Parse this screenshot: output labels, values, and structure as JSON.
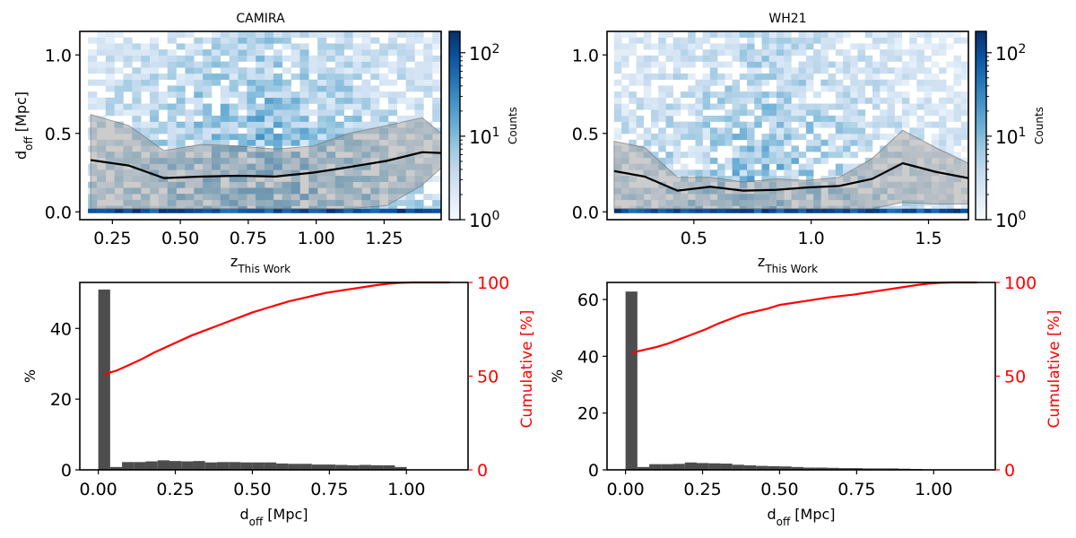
{
  "colors": {
    "axis": "#000000",
    "bar": "#4d4d4d",
    "cumulative": "#ff0000",
    "band": "#999999",
    "median": "#000000",
    "heat_low": "#f7fbff",
    "heat_high": "#08306b"
  },
  "colorbar": {
    "label": "Counts",
    "ticks": [
      {
        "base": "10",
        "exp": "0",
        "value": 1
      },
      {
        "base": "10",
        "exp": "1",
        "value": 10
      },
      {
        "base": "10",
        "exp": "2",
        "value": 100
      }
    ],
    "scale": "log",
    "range": [
      1,
      180
    ]
  },
  "chart_data": [
    {
      "type": "heatmap",
      "title": "CAMIRA",
      "xlabel": {
        "main": "z",
        "sub": "This Work"
      },
      "ylabel": {
        "main": "d",
        "sub": "off",
        "rest": " [Mpc]"
      },
      "xlim": [
        0.13,
        1.46
      ],
      "ylim": [
        -0.05,
        1.15
      ],
      "xticks": [
        "0.25",
        "0.50",
        "0.75",
        "1.00",
        "1.25"
      ],
      "xtick_values": [
        0.25,
        0.5,
        0.75,
        1.0,
        1.25
      ],
      "yticks": [
        "0.0",
        "0.5",
        "1.0"
      ],
      "ytick_values": [
        0.0,
        0.5,
        1.0
      ],
      "median_line": {
        "x": [
          0.17,
          0.31,
          0.44,
          0.58,
          0.71,
          0.85,
          0.99,
          1.12,
          1.26,
          1.39,
          1.46
        ],
        "y": [
          0.33,
          0.295,
          0.215,
          0.225,
          0.23,
          0.225,
          0.25,
          0.285,
          0.325,
          0.38,
          0.375
        ]
      },
      "band": {
        "x": [
          0.17,
          0.31,
          0.44,
          0.58,
          0.71,
          0.85,
          0.99,
          1.12,
          1.26,
          1.39,
          1.46
        ],
        "upper": [
          0.62,
          0.55,
          0.39,
          0.43,
          0.42,
          0.4,
          0.42,
          0.5,
          0.55,
          0.6,
          0.5
        ],
        "lower": [
          0.02,
          0.02,
          0.02,
          0.02,
          0.02,
          0.02,
          0.02,
          0.02,
          0.04,
          0.17,
          0.28
        ]
      },
      "heatmap_grid": {
        "nx": 40,
        "ny": 30,
        "seed": 7,
        "peak_bin_counts": 180
      },
      "colorbar_range": [
        1,
        180
      ]
    },
    {
      "type": "heatmap",
      "title": "WH21",
      "xlabel": {
        "main": "z",
        "sub": "This Work"
      },
      "ylabel": {
        "main": "",
        "sub": "",
        "rest": ""
      },
      "xlim": [
        0.13,
        1.67
      ],
      "ylim": [
        -0.05,
        1.15
      ],
      "xticks": [
        "0.5",
        "1.0",
        "1.5"
      ],
      "xtick_values": [
        0.5,
        1.0,
        1.5
      ],
      "yticks": [
        "0.0",
        "0.5",
        "1.0"
      ],
      "ytick_values": [
        0.0,
        0.5,
        1.0
      ],
      "median_line": {
        "x": [
          0.16,
          0.29,
          0.43,
          0.57,
          0.71,
          0.85,
          0.98,
          1.12,
          1.26,
          1.39,
          1.53,
          1.67
        ],
        "y": [
          0.26,
          0.225,
          0.135,
          0.16,
          0.135,
          0.14,
          0.155,
          0.165,
          0.21,
          0.31,
          0.255,
          0.215
        ]
      },
      "band": {
        "x": [
          0.16,
          0.29,
          0.43,
          0.57,
          0.71,
          0.85,
          0.98,
          1.12,
          1.26,
          1.39,
          1.53,
          1.67
        ],
        "upper": [
          0.45,
          0.41,
          0.22,
          0.22,
          0.19,
          0.21,
          0.2,
          0.22,
          0.34,
          0.52,
          0.41,
          0.31
        ],
        "lower": [
          0.02,
          0.02,
          0.02,
          0.02,
          0.02,
          0.02,
          0.02,
          0.02,
          0.02,
          0.06,
          0.05,
          0.05
        ]
      },
      "heatmap_grid": {
        "nx": 48,
        "ny": 30,
        "seed": 13,
        "peak_bin_counts": 180
      },
      "colorbar_range": [
        1,
        180
      ]
    },
    {
      "type": "bar",
      "title": "",
      "xlabel": {
        "main": "d",
        "sub": "off",
        "rest": " [Mpc]"
      },
      "ylabel": {
        "main": "%"
      },
      "y2label": "Cumulative [%]",
      "xlim": [
        -0.06,
        1.2
      ],
      "ylim": [
        0,
        53
      ],
      "y2lim": [
        0,
        100
      ],
      "xticks": [
        "0.00",
        "0.25",
        "0.50",
        "0.75",
        "1.00"
      ],
      "xtick_values": [
        0.0,
        0.25,
        0.5,
        0.75,
        1.0
      ],
      "yticks": [
        "0",
        "20",
        "40"
      ],
      "ytick_values": [
        0,
        20,
        40
      ],
      "y2ticks": [
        "0",
        "50",
        "100"
      ],
      "y2tick_values": [
        0,
        50,
        100
      ],
      "bin_width": 0.0385,
      "bin_edges_start": 0.0,
      "values": [
        51.0,
        0.8,
        2.2,
        2.2,
        2.4,
        2.7,
        2.5,
        2.4,
        2.5,
        2.1,
        2.2,
        2.2,
        2.1,
        2.1,
        2.1,
        1.8,
        1.7,
        1.7,
        1.5,
        1.5,
        1.4,
        1.3,
        1.4,
        1.3,
        1.3,
        0.8
      ],
      "cumulative": {
        "x": [
          0.02,
          0.06,
          0.1,
          0.14,
          0.18,
          0.22,
          0.26,
          0.3,
          0.34,
          0.38,
          0.42,
          0.46,
          0.5,
          0.54,
          0.58,
          0.62,
          0.66,
          0.7,
          0.74,
          0.78,
          0.82,
          0.86,
          0.9,
          0.94,
          0.98,
          1.02,
          1.06,
          1.1,
          1.14
        ],
        "y": [
          51,
          53,
          56,
          59,
          62.5,
          65.5,
          68.5,
          71.5,
          74,
          76.5,
          79,
          81.5,
          84,
          86,
          88,
          90,
          91.5,
          93,
          94.5,
          95.5,
          96.5,
          97.5,
          98.5,
          99.3,
          99.8,
          100,
          100,
          100,
          100
        ]
      }
    },
    {
      "type": "bar",
      "title": "",
      "xlabel": {
        "main": "d",
        "sub": "off",
        "rest": " [Mpc]"
      },
      "ylabel": {
        "main": "%"
      },
      "y2label": "Cumulative [%]",
      "xlim": [
        -0.06,
        1.2
      ],
      "ylim": [
        0,
        66
      ],
      "y2lim": [
        0,
        100
      ],
      "xticks": [
        "0.00",
        "0.25",
        "0.50",
        "0.75",
        "1.00"
      ],
      "xtick_values": [
        0.0,
        0.25,
        0.5,
        0.75,
        1.0
      ],
      "yticks": [
        "0",
        "20",
        "40",
        "60"
      ],
      "ytick_values": [
        0,
        20,
        40,
        60
      ],
      "y2ticks": [
        "0",
        "50",
        "100"
      ],
      "y2tick_values": [
        0,
        50,
        100
      ],
      "bin_width": 0.0385,
      "bin_edges_start": 0.0,
      "values": [
        62.8,
        1.0,
        2.0,
        2.0,
        2.1,
        2.6,
        2.4,
        2.3,
        2.2,
        1.8,
        1.6,
        1.4,
        1.3,
        1.2,
        1.0,
        0.8,
        0.8,
        0.7,
        0.6,
        0.6,
        0.5,
        0.5,
        0.5,
        0.4,
        0.3,
        0.0
      ],
      "cumulative": {
        "x": [
          0.02,
          0.06,
          0.1,
          0.14,
          0.18,
          0.22,
          0.26,
          0.3,
          0.34,
          0.38,
          0.42,
          0.46,
          0.5,
          0.54,
          0.58,
          0.62,
          0.66,
          0.7,
          0.74,
          0.78,
          0.82,
          0.86,
          0.9,
          0.94,
          0.98,
          1.02,
          1.06,
          1.1,
          1.14
        ],
        "y": [
          62.5,
          64,
          65.5,
          67.5,
          70,
          72.5,
          75,
          78,
          80.5,
          83,
          84.5,
          86,
          88,
          89,
          90,
          91,
          92,
          92.8,
          93.5,
          94.5,
          95.5,
          96.5,
          97.5,
          98.5,
          99.3,
          99.8,
          100,
          100,
          100
        ]
      }
    }
  ]
}
